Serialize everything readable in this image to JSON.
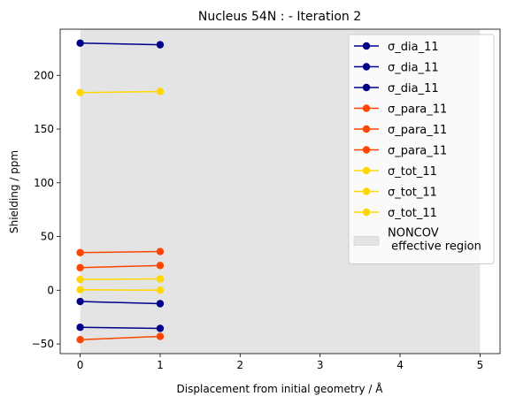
{
  "chart_data": {
    "type": "line",
    "title": "Nucleus 54N : - Iteration 2",
    "xlabel": "Displacement from initial geometry / Å",
    "ylabel": "Shielding / ppm",
    "xlim": [
      -0.25,
      5.25
    ],
    "ylim": [
      -59,
      243
    ],
    "xticks": [
      "0",
      "1",
      "2",
      "3",
      "4",
      "5"
    ],
    "yticks": [
      "−50",
      "0",
      "50",
      "100",
      "150",
      "200"
    ],
    "grid": false,
    "legend_position": "top-right",
    "region": {
      "label": "NONCOV\n effective region",
      "x": [
        0,
        5
      ],
      "color": "#e4e4e4"
    },
    "series": [
      {
        "name": "σ_dia_11",
        "color": "#00008b",
        "x": [
          0,
          1
        ],
        "y": [
          230,
          228.5
        ]
      },
      {
        "name": "σ_dia_11",
        "color": "#00008b",
        "x": [
          0,
          1
        ],
        "y": [
          -10.5,
          -12.5
        ]
      },
      {
        "name": "σ_dia_11",
        "color": "#00008b",
        "x": [
          0,
          1
        ],
        "y": [
          -34.5,
          -35.5
        ]
      },
      {
        "name": "σ_para_11",
        "color": "#ff4500",
        "x": [
          0,
          1
        ],
        "y": [
          35,
          36
        ]
      },
      {
        "name": "σ_para_11",
        "color": "#ff4500",
        "x": [
          0,
          1
        ],
        "y": [
          21,
          23
        ]
      },
      {
        "name": "σ_para_11",
        "color": "#ff4500",
        "x": [
          0,
          1
        ],
        "y": [
          -46,
          -43
        ]
      },
      {
        "name": "σ_tot_11",
        "color": "#ffd700",
        "x": [
          0,
          1
        ],
        "y": [
          184,
          185
        ]
      },
      {
        "name": "σ_tot_11",
        "color": "#ffd700",
        "x": [
          0,
          1
        ],
        "y": [
          10,
          10.5
        ]
      },
      {
        "name": "σ_tot_11",
        "color": "#ffd700",
        "x": [
          0,
          1
        ],
        "y": [
          0.5,
          0
        ]
      }
    ]
  }
}
